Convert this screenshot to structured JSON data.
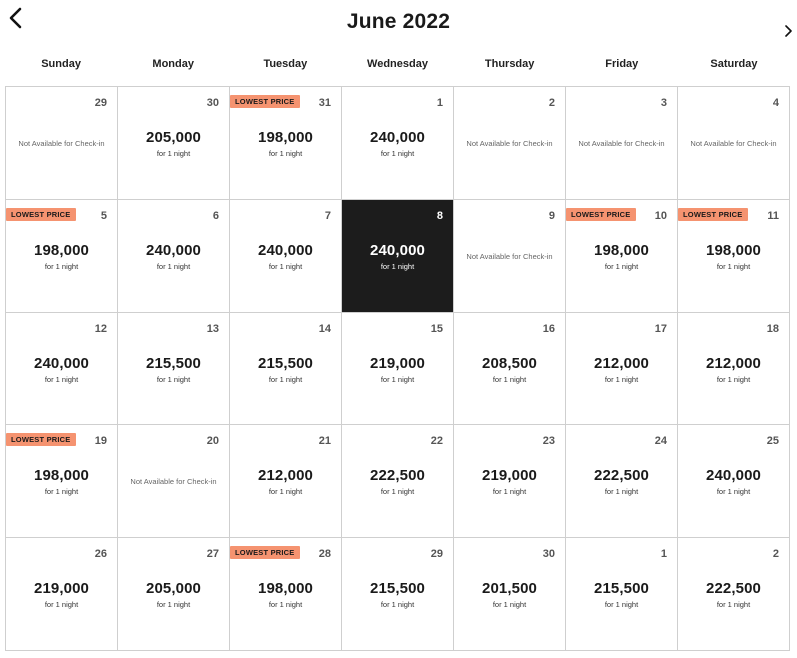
{
  "header": {
    "title": "June 2022",
    "prev_icon": "chevron-left-icon",
    "next_icon": "chevron-right-icon"
  },
  "weekdays": [
    "Sunday",
    "Monday",
    "Tuesday",
    "Wednesday",
    "Thursday",
    "Friday",
    "Saturday"
  ],
  "labels": {
    "per_night": "for 1 night",
    "badge": "LOWEST PRICE",
    "not_available": "Not Available for Check-in"
  },
  "colors": {
    "badge": "#f59370",
    "selected": "#1c1c1c"
  },
  "days": [
    {
      "day": "29",
      "price": null,
      "available": false,
      "lowest": false,
      "selected": false
    },
    {
      "day": "30",
      "price": "205,000",
      "available": true,
      "lowest": false,
      "selected": false
    },
    {
      "day": "31",
      "price": "198,000",
      "available": true,
      "lowest": true,
      "selected": false
    },
    {
      "day": "1",
      "price": "240,000",
      "available": true,
      "lowest": false,
      "selected": false
    },
    {
      "day": "2",
      "price": null,
      "available": false,
      "lowest": false,
      "selected": false
    },
    {
      "day": "3",
      "price": null,
      "available": false,
      "lowest": false,
      "selected": false
    },
    {
      "day": "4",
      "price": null,
      "available": false,
      "lowest": false,
      "selected": false
    },
    {
      "day": "5",
      "price": "198,000",
      "available": true,
      "lowest": true,
      "selected": false
    },
    {
      "day": "6",
      "price": "240,000",
      "available": true,
      "lowest": false,
      "selected": false
    },
    {
      "day": "7",
      "price": "240,000",
      "available": true,
      "lowest": false,
      "selected": false
    },
    {
      "day": "8",
      "price": "240,000",
      "available": true,
      "lowest": false,
      "selected": true
    },
    {
      "day": "9",
      "price": null,
      "available": false,
      "lowest": false,
      "selected": false
    },
    {
      "day": "10",
      "price": "198,000",
      "available": true,
      "lowest": true,
      "selected": false
    },
    {
      "day": "11",
      "price": "198,000",
      "available": true,
      "lowest": true,
      "selected": false
    },
    {
      "day": "12",
      "price": "240,000",
      "available": true,
      "lowest": false,
      "selected": false
    },
    {
      "day": "13",
      "price": "215,500",
      "available": true,
      "lowest": false,
      "selected": false
    },
    {
      "day": "14",
      "price": "215,500",
      "available": true,
      "lowest": false,
      "selected": false
    },
    {
      "day": "15",
      "price": "219,000",
      "available": true,
      "lowest": false,
      "selected": false
    },
    {
      "day": "16",
      "price": "208,500",
      "available": true,
      "lowest": false,
      "selected": false
    },
    {
      "day": "17",
      "price": "212,000",
      "available": true,
      "lowest": false,
      "selected": false
    },
    {
      "day": "18",
      "price": "212,000",
      "available": true,
      "lowest": false,
      "selected": false
    },
    {
      "day": "19",
      "price": "198,000",
      "available": true,
      "lowest": true,
      "selected": false
    },
    {
      "day": "20",
      "price": null,
      "available": false,
      "lowest": false,
      "selected": false
    },
    {
      "day": "21",
      "price": "212,000",
      "available": true,
      "lowest": false,
      "selected": false
    },
    {
      "day": "22",
      "price": "222,500",
      "available": true,
      "lowest": false,
      "selected": false
    },
    {
      "day": "23",
      "price": "219,000",
      "available": true,
      "lowest": false,
      "selected": false
    },
    {
      "day": "24",
      "price": "222,500",
      "available": true,
      "lowest": false,
      "selected": false
    },
    {
      "day": "25",
      "price": "240,000",
      "available": true,
      "lowest": false,
      "selected": false
    },
    {
      "day": "26",
      "price": "219,000",
      "available": true,
      "lowest": false,
      "selected": false
    },
    {
      "day": "27",
      "price": "205,000",
      "available": true,
      "lowest": false,
      "selected": false
    },
    {
      "day": "28",
      "price": "198,000",
      "available": true,
      "lowest": true,
      "selected": false
    },
    {
      "day": "29",
      "price": "215,500",
      "available": true,
      "lowest": false,
      "selected": false
    },
    {
      "day": "30",
      "price": "201,500",
      "available": true,
      "lowest": false,
      "selected": false
    },
    {
      "day": "1",
      "price": "215,500",
      "available": true,
      "lowest": false,
      "selected": false
    },
    {
      "day": "2",
      "price": "222,500",
      "available": true,
      "lowest": false,
      "selected": false
    }
  ]
}
